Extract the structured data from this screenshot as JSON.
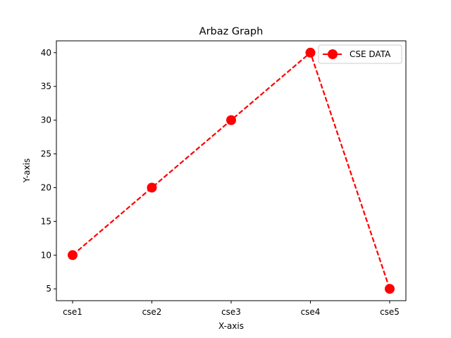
{
  "chart_data": {
    "type": "line",
    "title": "Arbaz Graph",
    "xlabel": "X-axis",
    "ylabel": "Y-axis",
    "categories": [
      "cse1",
      "cse2",
      "cse3",
      "cse4",
      "cse5"
    ],
    "series": [
      {
        "name": "CSE DATA",
        "values": [
          10,
          20,
          30,
          40,
          5
        ],
        "color": "#ff0000",
        "linestyle": "dashed",
        "marker": "circle"
      }
    ],
    "ylim": [
      3.25,
      41.75
    ],
    "yticks": [
      5,
      10,
      15,
      20,
      25,
      30,
      35,
      40
    ],
    "grid": false,
    "legend_position": "top-right"
  }
}
